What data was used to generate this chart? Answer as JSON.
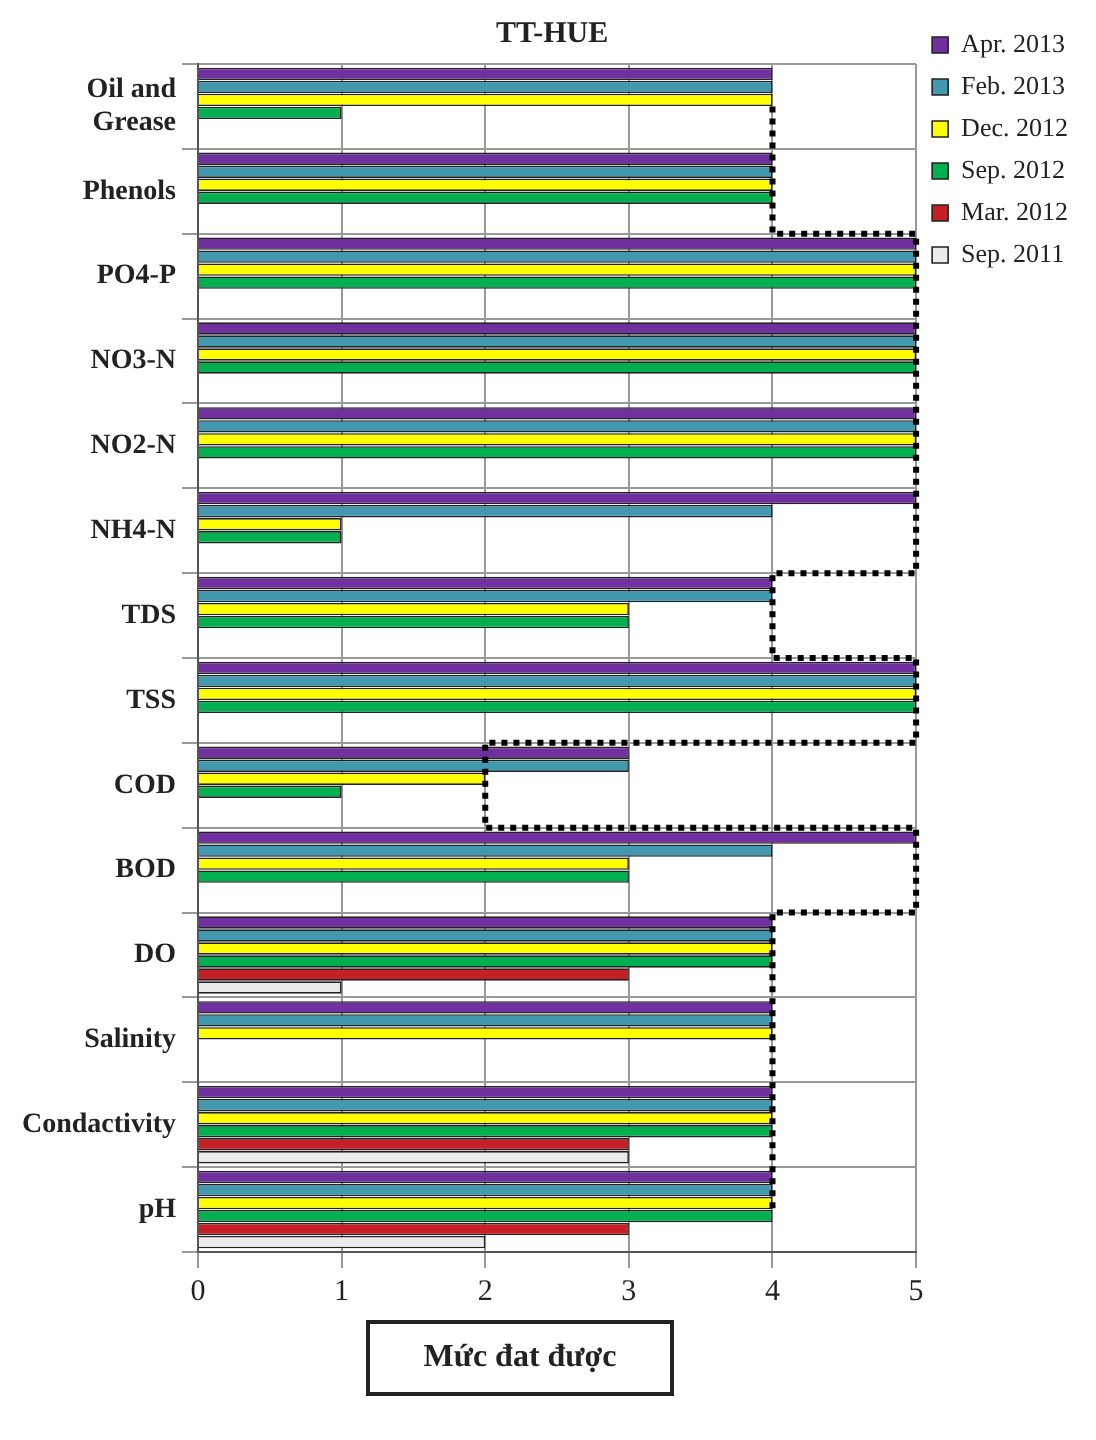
{
  "chart_data": {
    "type": "bar",
    "orientation": "horizontal",
    "title": "TT-HUE",
    "xlabel": "Mức đat được",
    "categories": [
      "Oil and Grease",
      "Phenols",
      "PO4-P",
      "NO3-N",
      "NO2-N",
      "NH4-N",
      "TDS",
      "TSS",
      "COD",
      "BOD",
      "DO",
      "Salinity",
      "Condactivity",
      "pH"
    ],
    "series": [
      {
        "name": "Apr. 2013",
        "color": "#7030a0",
        "values": [
          4,
          4,
          5,
          5,
          5,
          5,
          4,
          5,
          3,
          5,
          4,
          4,
          4,
          4
        ]
      },
      {
        "name": "Feb. 2013",
        "color": "#4198af",
        "values": [
          4,
          4,
          5,
          5,
          5,
          4,
          4,
          5,
          3,
          4,
          4,
          4,
          4,
          4
        ]
      },
      {
        "name": "Dec. 2012",
        "color": "#ffff00",
        "values": [
          4,
          4,
          5,
          5,
          5,
          1,
          3,
          5,
          2,
          3,
          4,
          4,
          4,
          4
        ]
      },
      {
        "name": "Sep. 2012",
        "color": "#00b050",
        "values": [
          1,
          4,
          5,
          5,
          5,
          1,
          3,
          5,
          1,
          3,
          4,
          null,
          4,
          4
        ]
      },
      {
        "name": "Mar. 2012",
        "color": "#c62026",
        "values": [
          null,
          null,
          null,
          null,
          null,
          null,
          null,
          null,
          null,
          null,
          3,
          null,
          3,
          3
        ]
      },
      {
        "name": "Sep. 2011",
        "color": "#ebebeb",
        "values": [
          null,
          null,
          null,
          null,
          null,
          null,
          null,
          null,
          null,
          null,
          1,
          null,
          3,
          2
        ]
      },
      {
        "type": "step",
        "color": "#000000",
        "line_style": "dotted",
        "values": [
          4,
          4,
          5,
          5,
          5,
          5,
          4,
          5,
          2,
          5,
          4,
          4,
          4,
          4
        ]
      }
    ],
    "xlim": [
      0,
      5
    ],
    "xticks": [
      0,
      1,
      2,
      3,
      4,
      5
    ],
    "grid": true,
    "legend": "top right"
  }
}
